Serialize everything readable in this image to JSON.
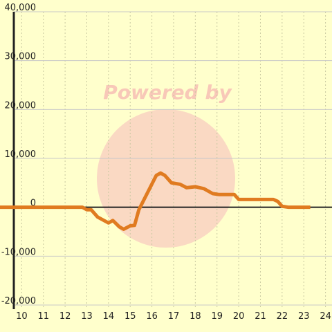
{
  "chart_data": {
    "type": "line",
    "watermark": "Powered by",
    "xlim": [
      9,
      24.3
    ],
    "xticks": [
      10,
      11,
      12,
      13,
      14,
      15,
      16,
      17,
      18,
      19,
      20,
      21,
      22,
      23,
      24
    ],
    "ylim": [
      -20000,
      40000
    ],
    "yticks": [
      {
        "value": -20000,
        "label": "-20,000"
      },
      {
        "value": -10000,
        "label": "-10,000"
      },
      0,
      {
        "value": 10000,
        "label": "10,000"
      },
      {
        "value": 20000,
        "label": "20,000"
      },
      {
        "value": 30000,
        "label": "30,000"
      },
      {
        "value": 40000,
        "label": "40,000"
      }
    ],
    "grid": true,
    "series": [
      {
        "color": "#e07b20",
        "x": [
          9,
          12.8,
          13,
          13.2,
          13.5,
          14,
          14.2,
          14.5,
          14.7,
          15,
          15.2,
          15.4,
          15.8,
          16.2,
          16.4,
          16.6,
          16.9,
          17.3,
          17.6,
          18,
          18.4,
          18.8,
          19.1,
          19.8,
          20,
          20.7,
          21.6,
          21.8,
          22,
          22.3,
          23.3
        ],
        "values": [
          0,
          0,
          -500,
          -500,
          -2000,
          -3200,
          -2700,
          -4000,
          -4500,
          -3800,
          -3700,
          -500,
          3000,
          6500,
          7000,
          6500,
          5000,
          4700,
          4000,
          4200,
          3800,
          2800,
          2600,
          2600,
          1600,
          1600,
          1600,
          1200,
          200,
          0,
          0
        ]
      }
    ]
  }
}
